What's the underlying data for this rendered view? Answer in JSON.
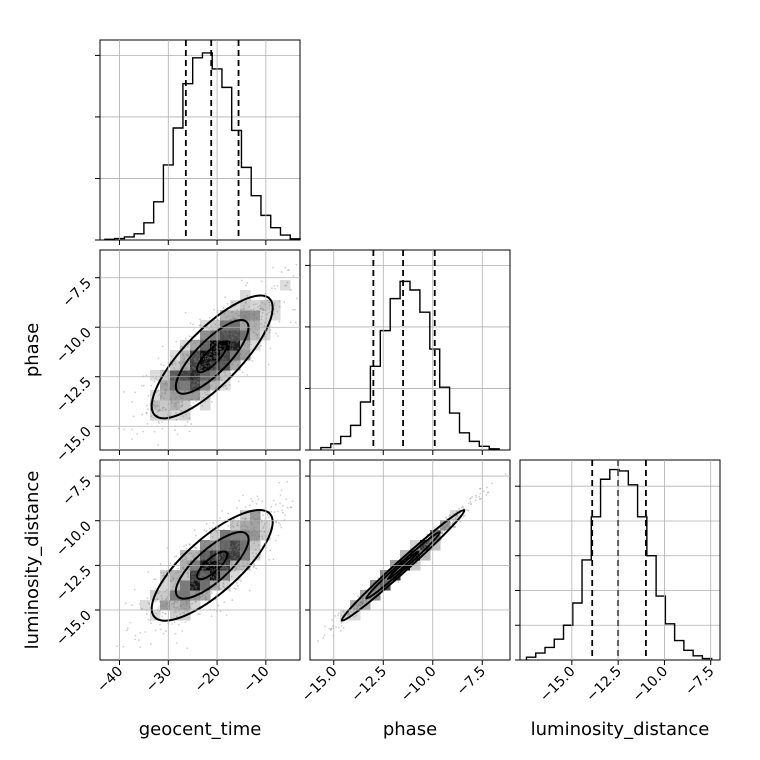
{
  "figure": {
    "type": "corner-plot"
  },
  "chart_data": [
    {
      "type": "histogram",
      "parameter": "geocent_time",
      "x_range": [
        -44,
        -3
      ],
      "quantiles": [
        -26.4,
        -21.2,
        -15.6
      ],
      "bin_edges": [
        -43,
        -41,
        -39,
        -37,
        -35,
        -33,
        -31,
        -29,
        -27,
        -25,
        -23,
        -21,
        -19,
        -17,
        -15,
        -13,
        -11,
        -9,
        -7,
        -5,
        -3
      ],
      "counts": [
        0.5,
        1.2,
        2.5,
        5,
        14,
        31,
        61,
        91,
        127,
        148,
        152,
        139,
        124,
        89,
        59,
        36,
        20,
        10,
        4,
        1
      ],
      "y_ticks": [
        0,
        50,
        100,
        150
      ],
      "y_tick_labels": [
        "",
        "",
        "",
        ""
      ]
    },
    {
      "type": "histogram",
      "parameter": "phase",
      "x_range": [
        -16.2,
        -6.1
      ],
      "quantiles": [
        -13.0,
        -11.5,
        -9.9
      ],
      "bin_edges": [
        -15.65,
        -15.15,
        -14.65,
        -14.15,
        -13.65,
        -13.15,
        -12.65,
        -12.15,
        -11.65,
        -11.15,
        -10.65,
        -10.15,
        -9.65,
        -9.15,
        -8.65,
        -8.15,
        -7.65,
        -7.15,
        -6.65
      ],
      "counts": [
        2,
        5,
        11,
        20,
        39,
        68,
        97,
        123,
        137,
        130,
        112,
        82,
        51,
        30,
        14,
        7,
        3,
        1
      ],
      "y_ticks": [
        0,
        50,
        100,
        150
      ],
      "y_tick_labels": [
        "",
        "",
        "",
        ""
      ]
    },
    {
      "type": "histogram",
      "parameter": "luminosity_distance",
      "x_range": [
        -17.8,
        -7.0
      ],
      "quantiles": [
        -13.9,
        -12.5,
        -11.0
      ],
      "bin_edges": [
        -17.45,
        -16.95,
        -16.45,
        -15.95,
        -15.45,
        -14.95,
        -14.45,
        -13.95,
        -13.45,
        -12.95,
        -12.45,
        -11.95,
        -11.45,
        -10.95,
        -10.45,
        -9.95,
        -9.45,
        -8.95,
        -8.45,
        -7.95,
        -7.45
      ],
      "counts": [
        2,
        5,
        9,
        15,
        25,
        41,
        72,
        103,
        130,
        137,
        136,
        126,
        103,
        75,
        46,
        26,
        14,
        7,
        3,
        1
      ],
      "y_ticks": [
        0,
        25,
        50,
        75,
        100,
        125
      ],
      "y_tick_labels": [
        "",
        "",
        "",
        "",
        "",
        ""
      ]
    },
    {
      "type": "scatter",
      "x_param": "geocent_time",
      "y_param": "phase",
      "x_range": [
        -44,
        -3
      ],
      "y_range": [
        -16.2,
        -6.1
      ],
      "mean": [
        -21.0,
        -11.5
      ],
      "std": [
        6.2,
        1.55
      ],
      "correlation": 0.8,
      "n_points": 2200,
      "contour_levels": 3
    },
    {
      "type": "scatter",
      "x_param": "geocent_time",
      "y_param": "luminosity_distance",
      "x_range": [
        -44,
        -3
      ],
      "y_range": [
        -17.8,
        -6.6
      ],
      "mean": [
        -21.0,
        -12.5
      ],
      "std": [
        6.2,
        1.55
      ],
      "correlation": 0.78,
      "n_points": 2200,
      "contour_levels": 3
    },
    {
      "type": "scatter",
      "x_param": "phase",
      "y_param": "luminosity_distance",
      "x_range": [
        -16.2,
        -6.1
      ],
      "y_range": [
        -17.8,
        -6.6
      ],
      "mean": [
        -11.5,
        -12.5
      ],
      "std": [
        1.55,
        1.55
      ],
      "correlation": 0.99,
      "n_points": 2200,
      "contour_levels": 3
    }
  ],
  "axes": {
    "geocent_time": {
      "label": "geocent_time",
      "ticks": [
        -40,
        -30,
        -20,
        -10
      ],
      "tick_labels": [
        "−40",
        "−30",
        "−20",
        "−10"
      ]
    },
    "phase": {
      "label": "phase",
      "ticks": [
        -15.0,
        -12.5,
        -10.0,
        -7.5
      ],
      "tick_labels": [
        "−15.0",
        "−12.5",
        "−10.0",
        "−7.5"
      ]
    },
    "luminosity_distance": {
      "label": "luminosity_distance",
      "ticks": [
        -15.0,
        -12.5,
        -10.0,
        -7.5
      ],
      "tick_labels": [
        "−15.0",
        "−12.5",
        "−10.0",
        "−7.5"
      ]
    }
  }
}
